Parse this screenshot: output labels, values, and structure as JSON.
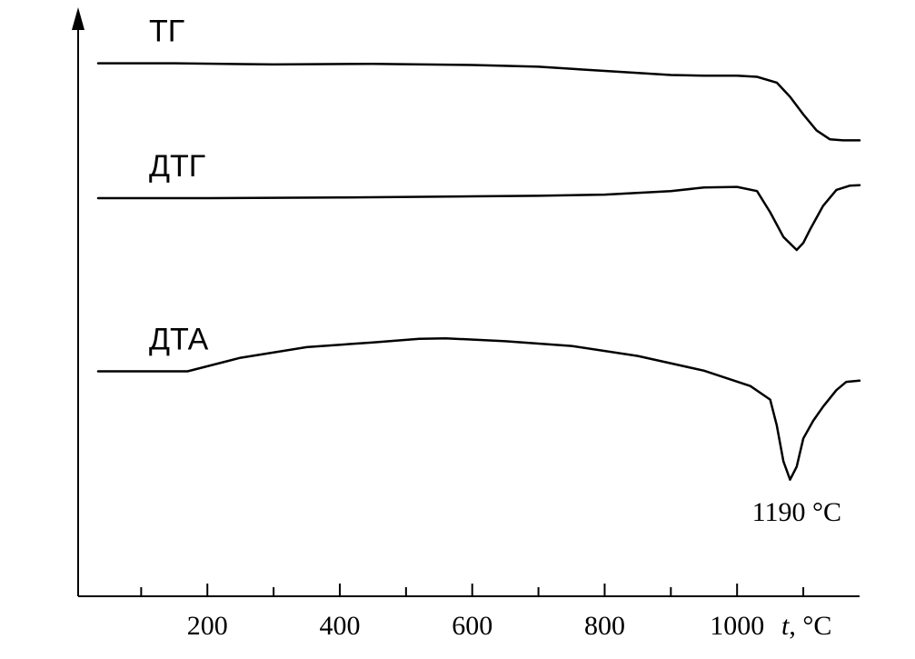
{
  "chart_data": {
    "type": "line",
    "title": "",
    "xlabel_var": "t",
    "xlabel_unit": ", °C",
    "ylabel": "",
    "xlim": [
      35,
      1185
    ],
    "x_ticks": [
      200,
      400,
      600,
      800,
      1000
    ],
    "x_minor_ticks": [
      100,
      300,
      500,
      700,
      900,
      1100
    ],
    "grid": false,
    "series": [
      {
        "name": "ТГ",
        "x": [
          35,
          150,
          300,
          450,
          600,
          700,
          800,
          900,
          950,
          1000,
          1030,
          1060,
          1080,
          1100,
          1120,
          1140,
          1160,
          1185
        ],
        "y": [
          0.905,
          0.905,
          0.903,
          0.904,
          0.902,
          0.899,
          0.892,
          0.885,
          0.884,
          0.884,
          0.882,
          0.872,
          0.848,
          0.818,
          0.791,
          0.776,
          0.774,
          0.774
        ]
      },
      {
        "name": "ДТГ",
        "x": [
          35,
          200,
          400,
          600,
          700,
          800,
          900,
          950,
          1000,
          1030,
          1050,
          1070,
          1090,
          1100,
          1110,
          1130,
          1150,
          1170,
          1185
        ],
        "y": [
          0.676,
          0.676,
          0.677,
          0.679,
          0.68,
          0.682,
          0.688,
          0.694,
          0.695,
          0.688,
          0.652,
          0.61,
          0.588,
          0.6,
          0.622,
          0.663,
          0.69,
          0.697,
          0.698
        ]
      },
      {
        "name": "ДТА",
        "x": [
          35,
          170,
          250,
          350,
          450,
          520,
          560,
          650,
          750,
          850,
          950,
          1020,
          1050,
          1060,
          1070,
          1080,
          1090,
          1100,
          1115,
          1130,
          1150,
          1165,
          1185
        ],
        "y": [
          0.382,
          0.382,
          0.405,
          0.423,
          0.431,
          0.437,
          0.438,
          0.433,
          0.425,
          0.408,
          0.383,
          0.357,
          0.334,
          0.29,
          0.229,
          0.198,
          0.22,
          0.268,
          0.298,
          0.322,
          0.35,
          0.364,
          0.366
        ]
      }
    ],
    "annotations": [
      {
        "text": "1190 °C",
        "x": 1090,
        "y": 0.128
      }
    ]
  }
}
